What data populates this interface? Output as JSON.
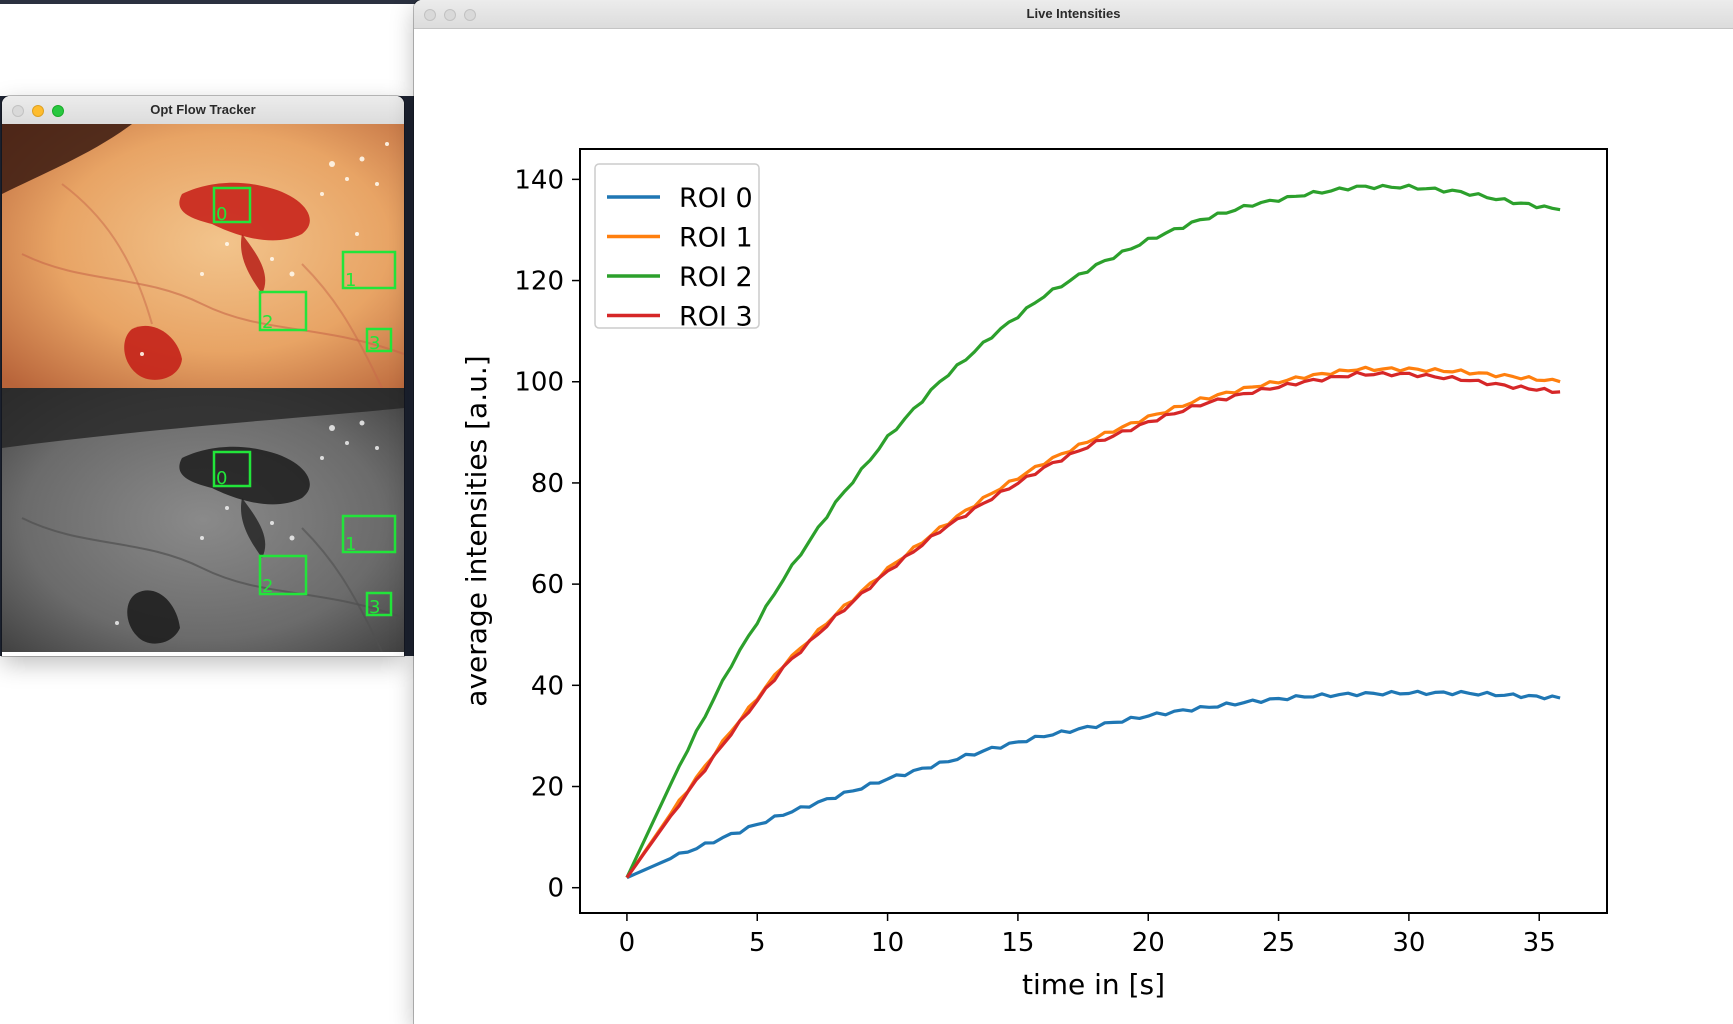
{
  "tracker_window": {
    "title": "Opt Flow Tracker",
    "roi_labels": [
      "0",
      "1",
      "2",
      "3"
    ]
  },
  "live_window": {
    "title": "Live Intensities"
  },
  "colors": {
    "roi0": "#1f77b4",
    "roi1": "#ff7f0e",
    "roi2": "#2ca02c",
    "roi3": "#d62728",
    "roi_box": "#22e53a"
  },
  "chart_data": {
    "type": "line",
    "title": "",
    "xlabel": "time in [s]",
    "ylabel": "average intensities [a.u.]",
    "xlim": [
      -1.8,
      37.6
    ],
    "ylim": [
      -5,
      146
    ],
    "xticks": [
      0,
      5,
      10,
      15,
      20,
      25,
      30,
      35
    ],
    "yticks": [
      0,
      20,
      40,
      60,
      80,
      100,
      120,
      140
    ],
    "grid": false,
    "legend_position": "top-left",
    "x": [
      0,
      2,
      4,
      6,
      8,
      10,
      12,
      14,
      16,
      18,
      20,
      22,
      24,
      26,
      28,
      30,
      32,
      34,
      35.8
    ],
    "series": [
      {
        "name": "ROI 0",
        "color": "#1f77b4",
        "values": [
          2,
          6.5,
          10.5,
          14.5,
          18,
          21.5,
          24.5,
          27.5,
          30,
          32,
          34,
          35.5,
          36.8,
          37.8,
          38.3,
          38.5,
          38.5,
          38,
          37.5
        ]
      },
      {
        "name": "ROI 1",
        "color": "#ff7f0e",
        "values": [
          2,
          17,
          31,
          44,
          54,
          63,
          71,
          78,
          84,
          89,
          93,
          96.5,
          99,
          101,
          102.5,
          102.5,
          102,
          101,
          100
        ]
      },
      {
        "name": "ROI 2",
        "color": "#2ca02c",
        "values": [
          2,
          24,
          44,
          61,
          76,
          89,
          100,
          109,
          117,
          123,
          128,
          132,
          135,
          137,
          138.5,
          138.5,
          137.5,
          135.5,
          134
        ]
      },
      {
        "name": "ROI 3",
        "color": "#d62728",
        "values": [
          2,
          16.5,
          30.5,
          43.5,
          53.5,
          62.5,
          70.5,
          77,
          83,
          88,
          92,
          95.5,
          98,
          100,
          101.5,
          101.5,
          100.5,
          99,
          98
        ]
      }
    ]
  }
}
